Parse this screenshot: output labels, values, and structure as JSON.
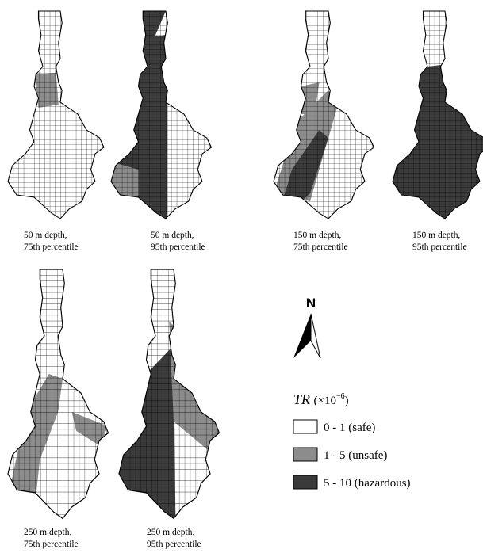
{
  "panels": [
    {
      "line1": "50 m depth,",
      "line2": "75th percentile"
    },
    {
      "line1": "50 m depth,",
      "line2": "95th percentile"
    },
    {
      "line1": "150 m depth,",
      "line2": "75th percentile"
    },
    {
      "line1": "150 m depth,",
      "line2": "95th percentile"
    },
    {
      "line1": "250 m depth,",
      "line2": "75th percentile"
    },
    {
      "line1": "250 m depth,",
      "line2": "95th percentile"
    }
  ],
  "north": "N",
  "legend": {
    "symbol": "TR",
    "unit_prefix": "(×10",
    "unit_exponent": "−6",
    "unit_suffix": ")",
    "items": [
      {
        "label": "0 - 1 (safe)",
        "color": "#ffffff"
      },
      {
        "label": "1 - 5 (unsafe)",
        "color": "#8c8c8c"
      },
      {
        "label": "5 - 10 (hazardous)",
        "color": "#3a3a3a"
      }
    ]
  }
}
